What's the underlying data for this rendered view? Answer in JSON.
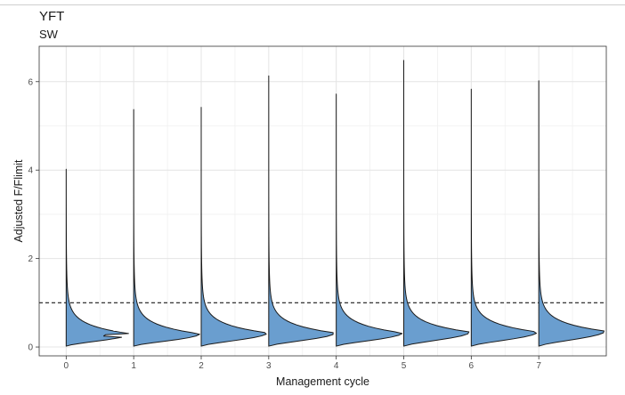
{
  "chart_data": {
    "type": "violin",
    "title": "YFT",
    "subtitle": "SW",
    "xlabel": "Management cycle",
    "ylabel": "Adjusted F/Flimit",
    "x_ticks": [
      "0",
      "1",
      "2",
      "3",
      "4",
      "5",
      "6",
      "7"
    ],
    "y_ticks": [
      0,
      2,
      4,
      6
    ],
    "xlim": [
      -0.4,
      8.0
    ],
    "ylim": [
      -0.2,
      6.8
    ],
    "reference_line": {
      "y": 1,
      "style": "dashed"
    },
    "grid": true,
    "fill_color": "#6a9ecf",
    "distributions": [
      {
        "x": 0,
        "min": 0.02,
        "max": 4.02,
        "mode": 0.3,
        "peak_width": 0.95
      },
      {
        "x": 1,
        "min": 0.02,
        "max": 5.37,
        "mode": 0.3,
        "peak_width": 0.98
      },
      {
        "x": 2,
        "min": 0.02,
        "max": 5.42,
        "mode": 0.32,
        "peak_width": 0.98
      },
      {
        "x": 3,
        "min": 0.02,
        "max": 6.13,
        "mode": 0.32,
        "peak_width": 0.98
      },
      {
        "x": 4,
        "min": 0.02,
        "max": 5.72,
        "mode": 0.32,
        "peak_width": 0.98
      },
      {
        "x": 5,
        "min": 0.02,
        "max": 6.48,
        "mode": 0.34,
        "peak_width": 0.98
      },
      {
        "x": 6,
        "min": 0.02,
        "max": 5.83,
        "mode": 0.34,
        "peak_width": 0.98
      },
      {
        "x": 7,
        "min": 0.02,
        "max": 6.02,
        "mode": 0.36,
        "peak_width": 0.98
      }
    ]
  }
}
